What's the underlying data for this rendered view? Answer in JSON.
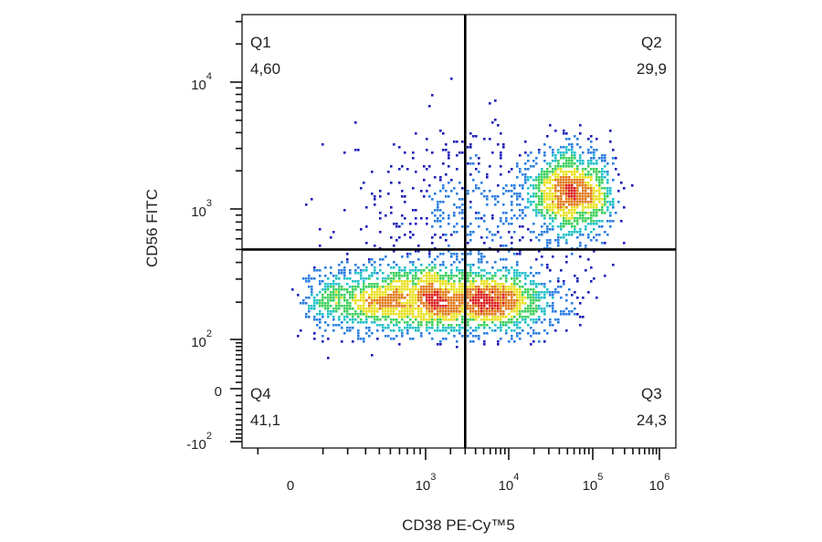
{
  "chart_data": {
    "type": "scatter",
    "subtype": "flow-cytometry-density-dot-plot",
    "xlabel": "CD38 PE-Cy™5",
    "ylabel": "CD56 FITC",
    "x_scale": "biexponential",
    "y_scale": "biexponential",
    "x_ticks": [
      {
        "value": 0,
        "base": "0",
        "exp": ""
      },
      {
        "value": 1000,
        "base": "10",
        "exp": "3"
      },
      {
        "value": 10000,
        "base": "10",
        "exp": "4"
      },
      {
        "value": 100000,
        "base": "10",
        "exp": "5"
      },
      {
        "value": 1000000,
        "base": "10",
        "exp": "6"
      }
    ],
    "y_ticks": [
      {
        "value": -100,
        "base": "-10",
        "exp": "2"
      },
      {
        "value": 0,
        "base": "0",
        "exp": ""
      },
      {
        "value": 100,
        "base": "10",
        "exp": "2"
      },
      {
        "value": 1000,
        "base": "10",
        "exp": "3"
      },
      {
        "value": 10000,
        "base": "10",
        "exp": "4"
      }
    ],
    "gate": {
      "x": 3000,
      "y": 500
    },
    "quadrants": [
      {
        "name": "Q1",
        "value": "4,60",
        "position": "top-left"
      },
      {
        "name": "Q2",
        "value": "29,9",
        "position": "top-right"
      },
      {
        "name": "Q3",
        "value": "24,3",
        "position": "bottom-right"
      },
      {
        "name": "Q4",
        "value": "41,1",
        "position": "bottom-left"
      }
    ],
    "populations": [
      {
        "center_x": 600,
        "center_y": 210,
        "spread_x_decades": 0.45,
        "spread_y_decades": 0.14,
        "events": 1600
      },
      {
        "center_x": 7000,
        "center_y": 200,
        "spread_x_decades": 0.4,
        "spread_y_decades": 0.13,
        "events": 1100
      },
      {
        "center_x": 55000,
        "center_y": 1300,
        "spread_x_decades": 0.28,
        "spread_y_decades": 0.18,
        "events": 1200
      },
      {
        "center_x": 2500,
        "center_y": 900,
        "spread_x_decades": 0.55,
        "spread_y_decades": 0.35,
        "events": 450
      }
    ],
    "colormap": [
      "#1a1ab8",
      "#2a7de0",
      "#22c0c8",
      "#3ccf5a",
      "#e8e020",
      "#e07818",
      "#d81818"
    ],
    "grid": false,
    "legend": "none"
  }
}
